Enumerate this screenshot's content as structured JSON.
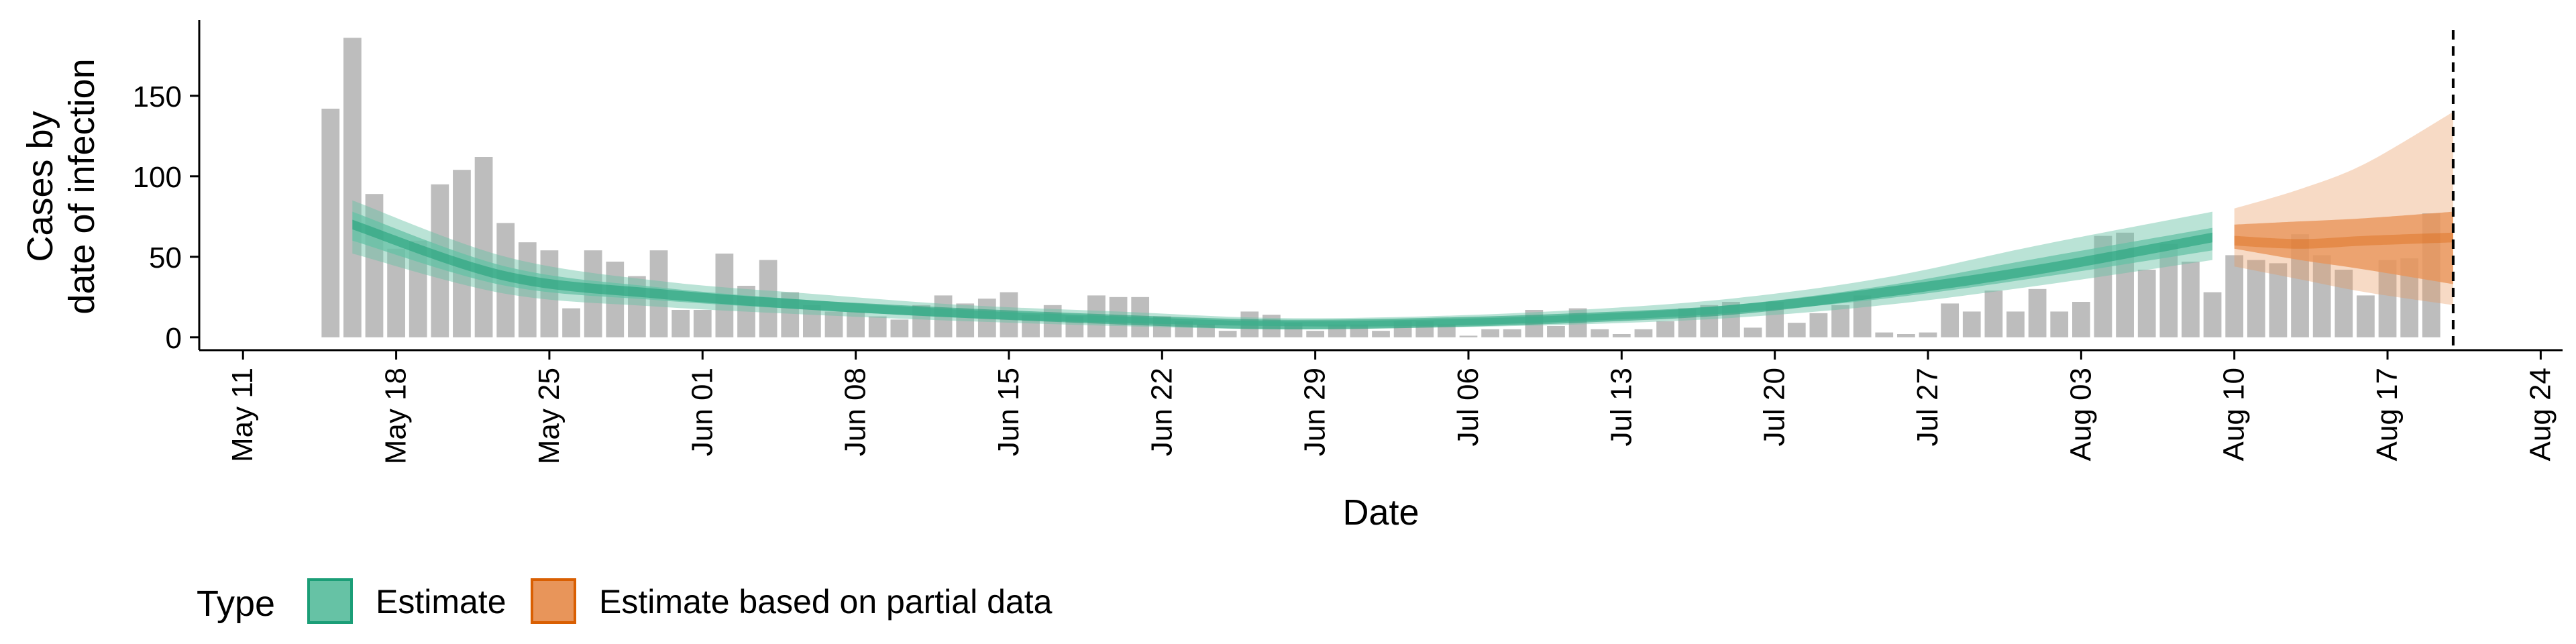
{
  "chart_data": {
    "type": "bar",
    "xlabel": "Date",
    "ylabel": [
      "Cases by",
      "date of infection"
    ],
    "x_ticks": [
      "May 11",
      "May 18",
      "May 25",
      "Jun 01",
      "Jun 08",
      "Jun 15",
      "Jun 22",
      "Jun 29",
      "Jul 06",
      "Jul 13",
      "Jul 20",
      "Jul 27",
      "Aug 03",
      "Aug 10",
      "Aug 17",
      "Aug 24"
    ],
    "y_ticks": [
      0,
      50,
      100,
      150
    ],
    "ylim": [
      -8,
      197
    ],
    "xlim": [
      "2020-05-09",
      "2020-08-25"
    ],
    "grid": false,
    "legend_position": "bottom",
    "legend_title": "Type",
    "legend_items": [
      {
        "label": "Estimate",
        "color": "#66c2a5",
        "border": "#1b9e77"
      },
      {
        "label": "Estimate based on partial data",
        "color": "#e8955a",
        "border": "#d95f02"
      }
    ],
    "bar_color": "#bdbdbd",
    "vline_date": "2020-08-20",
    "start_date": "2020-05-15",
    "bars": [
      142,
      186,
      89,
      55,
      60,
      95,
      104,
      112,
      71,
      59,
      54,
      18,
      54,
      47,
      38,
      54,
      17,
      17,
      52,
      32,
      48,
      28,
      20,
      16,
      16,
      13,
      11,
      20,
      26,
      21,
      24,
      28,
      14,
      20,
      13,
      26,
      25,
      25,
      13,
      10,
      8,
      4,
      16,
      14,
      9,
      4,
      8,
      8,
      4,
      10,
      10,
      8,
      1,
      5,
      5,
      17,
      7,
      18,
      5,
      2,
      5,
      10,
      18,
      20,
      22,
      6,
      22,
      9,
      15,
      20,
      26,
      3,
      2,
      3,
      21,
      16,
      29,
      16,
      30,
      16,
      22,
      63,
      65,
      42,
      58,
      47,
      28,
      51,
      48,
      46,
      64,
      51,
      42,
      26,
      48,
      49,
      77
    ],
    "series": [
      {
        "name": "Estimate",
        "dates": [
          "2020-05-16",
          "2020-05-23",
          "2020-05-30",
          "2020-06-06",
          "2020-06-13",
          "2020-06-20",
          "2020-06-27",
          "2020-07-04",
          "2020-07-11",
          "2020-07-18",
          "2020-07-25",
          "2020-08-01",
          "2020-08-09"
        ],
        "median": [
          70,
          38,
          27,
          20,
          15,
          11,
          8,
          9,
          12,
          17,
          28,
          42,
          62
        ],
        "inner_lower": [
          60,
          32,
          23,
          17,
          12,
          9,
          7,
          7,
          10,
          15,
          24,
          37,
          54
        ],
        "inner_upper": [
          78,
          44,
          31,
          23,
          17,
          13,
          10,
          11,
          14,
          20,
          32,
          49,
          68
        ],
        "outer_lower": [
          52,
          27,
          19,
          14,
          10,
          7,
          5,
          6,
          8,
          12,
          20,
          32,
          48
        ],
        "outer_upper": [
          85,
          50,
          35,
          27,
          20,
          16,
          12,
          13,
          17,
          24,
          37,
          57,
          78
        ]
      },
      {
        "name": "Estimate based on partial data",
        "dates": [
          "2020-08-10",
          "2020-08-13",
          "2020-08-16",
          "2020-08-20"
        ],
        "median": [
          60,
          58,
          60,
          62
        ],
        "inner_lower": [
          55,
          48,
          42,
          33
        ],
        "inner_upper": [
          70,
          72,
          74,
          78
        ],
        "outer_lower": [
          44,
          36,
          28,
          20
        ],
        "outer_upper": [
          80,
          92,
          108,
          140
        ]
      }
    ]
  }
}
